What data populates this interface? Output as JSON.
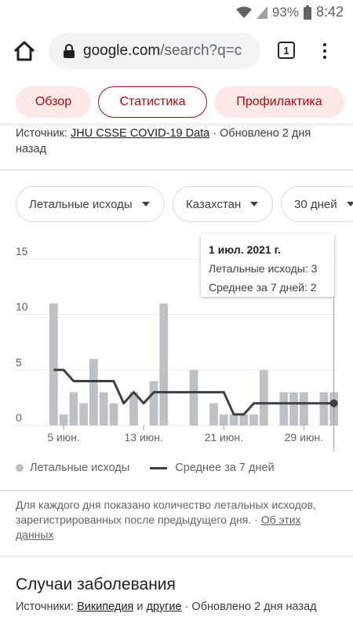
{
  "status_bar": {
    "battery": "93%",
    "time": "8:42",
    "icons": [
      "wifi-icon",
      "signal-icon",
      "battery-icon"
    ]
  },
  "browser": {
    "url_host": "google.com",
    "url_rest": "/search?q=c",
    "tab_count": "1",
    "icons": [
      "home-icon",
      "lock-icon",
      "more-vert-icon"
    ]
  },
  "chips": [
    {
      "label": "Обзор",
      "active": false
    },
    {
      "label": "Статистика",
      "active": true
    },
    {
      "label": "Профилактика",
      "active": false
    }
  ],
  "source": {
    "prefix": "Источник: ",
    "link": "JHU CSSE COVID-19 Data",
    "suffix": " · Обновлено 2 дня назад"
  },
  "filters": {
    "metric": "Летальные исходы",
    "region": "Казахстан",
    "period": "30 дней"
  },
  "tooltip": {
    "date": "1 июл. 2021 г.",
    "deaths": "Летальные исходы: 3",
    "avg": "Среднее за 7 дней: 2"
  },
  "chart_data": {
    "type": "bar",
    "categories": [
      "",
      "",
      "",
      "",
      "",
      "",
      "",
      "",
      "",
      "",
      "",
      "",
      "",
      "",
      "",
      "",
      "",
      "",
      "",
      "",
      "",
      "",
      "",
      "",
      "",
      "",
      "",
      "",
      ""
    ],
    "x_tick_labels": [
      "5 июн.",
      "13 июн.",
      "21 июн.",
      "29 июн."
    ],
    "y_tick_labels": [
      "0",
      "5",
      "10",
      "15"
    ],
    "ylim": [
      0,
      15
    ],
    "series": [
      {
        "name": "Летальные исходы",
        "type": "bar",
        "color": "#bdc1c6",
        "values": [
          11,
          1,
          3,
          2,
          6,
          3,
          2,
          0,
          3,
          0,
          4,
          11,
          0,
          0,
          5,
          0,
          2,
          1,
          1,
          1,
          1,
          5,
          0,
          3,
          3,
          3,
          0,
          3,
          3
        ]
      },
      {
        "name": "Среднее за 7 дней",
        "type": "line",
        "color": "#3c4043",
        "values": [
          5,
          5,
          4,
          4,
          4,
          4,
          4,
          2,
          3,
          2,
          3,
          3,
          3,
          3,
          3,
          3,
          3,
          3,
          1,
          1,
          2,
          2,
          2,
          2,
          2,
          2,
          2,
          2,
          2
        ]
      }
    ],
    "grid": true,
    "legend_position": "bottom-left"
  },
  "legend": {
    "bars": "Летальные исходы",
    "line": "Среднее за 7 дней"
  },
  "note": {
    "text": "Для каждого дня показано количество летальных исходов, зарегистрированных после предыдущего дня.",
    "link": "Об этих данных"
  },
  "cases": {
    "title": "Случаи заболевания",
    "prefix": "Источники: ",
    "link1": "Википедия",
    "mid": " и ",
    "link2": "другие",
    "suffix": " · Обновлено 2 дня назад"
  }
}
